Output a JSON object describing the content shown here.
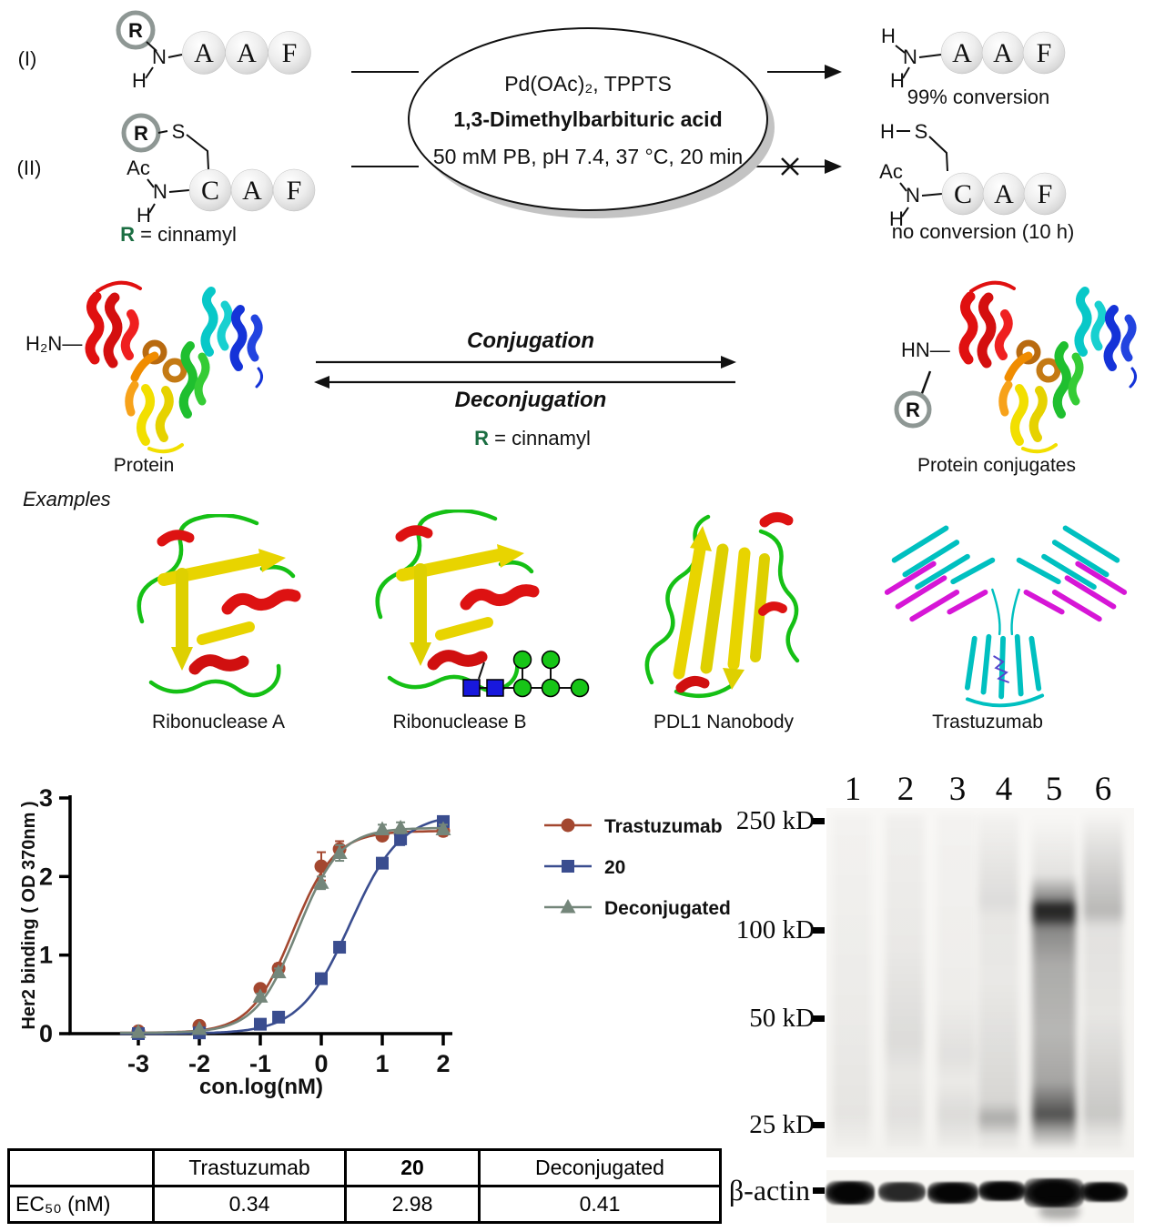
{
  "colors": {
    "green": "#1b6e42",
    "navy": "#1c4a75",
    "series_trastuzumab": "#a3472f",
    "series_20": "#3a4d8f",
    "series_deconjugated": "#74867a"
  },
  "scheme": {
    "label_i": "(I)",
    "label_ii": "(II)",
    "r": "R",
    "h": "H",
    "n": "N",
    "s": "S",
    "ac": "Ac",
    "beads_aaf": [
      "A",
      "A",
      "F"
    ],
    "beads_caf": [
      "C",
      "A",
      "F"
    ],
    "oval_line1": "Pd(OAc)₂, TPPTS",
    "oval_line2": "1,3-Dimethylbarbituric acid",
    "oval_line3": "50 mM PB, pH 7.4, 37 °C, 20 min",
    "conversion_i": "99% conversion",
    "conversion_ii": "no conversion (10 h)",
    "r_def_r": "R",
    "r_def_rest": " = cinnamyl"
  },
  "conjugation": {
    "forward_label": "Conjugation",
    "reverse_label": "Deconjugation",
    "r_def_r": "R",
    "r_def_rest": " = cinnamyl",
    "left_terminus": "H₂N—",
    "right_terminus": "HN—",
    "r": "R",
    "left_label": "Protein",
    "right_label": "Protein conjugates"
  },
  "examples": {
    "title": "Examples",
    "items": [
      "Ribonuclease A",
      "Ribonuclease B",
      "PDL1 Nanobody",
      "Trastuzumab"
    ]
  },
  "chart_data": {
    "type": "line",
    "title": "",
    "xlabel": "con.log(nM)",
    "ylabel": "Her2 binding ( OD 370nm )",
    "xticks": [
      -3,
      -2,
      -1,
      0,
      1,
      2
    ],
    "yticks": [
      0,
      1,
      2,
      3
    ],
    "xlim": [
      -4.1,
      2.15
    ],
    "ylim": [
      0,
      3
    ],
    "grid": false,
    "legend_position": "right",
    "x": [
      -3,
      -2,
      -1,
      -0.7,
      0,
      0.3,
      1,
      1.3,
      2
    ],
    "series": [
      {
        "name": "Trastuzumab",
        "marker": "circle",
        "color": "#a3472f",
        "values": [
          0.03,
          0.1,
          0.57,
          0.83,
          2.13,
          2.35,
          2.52,
          2.55,
          2.58
        ],
        "errors": [
          0,
          0.03,
          0.05,
          0.06,
          0.18,
          0.1,
          0.05,
          0.06,
          0.06
        ],
        "fit": {
          "top": 2.58,
          "bottom": 0.01,
          "logEC50": -0.468,
          "hill": 1.25
        }
      },
      {
        "name": "20",
        "marker": "square",
        "color": "#3a4d8f",
        "values": [
          0.0,
          0.01,
          0.12,
          0.21,
          0.7,
          1.1,
          2.17,
          2.48,
          2.7
        ],
        "errors": [
          0,
          0,
          0,
          0,
          0.04,
          0.05,
          0.05,
          0.08,
          0.05
        ],
        "fit": {
          "top": 2.8,
          "bottom": 0.0,
          "logEC50": 0.474,
          "hill": 1.05
        }
      },
      {
        "name": "Deconjugated",
        "marker": "triangle",
        "color": "#74867a",
        "values": [
          0.02,
          0.06,
          0.47,
          0.78,
          1.92,
          2.3,
          2.6,
          2.62,
          2.6
        ],
        "errors": [
          0,
          0.02,
          0.04,
          0.05,
          0.08,
          0.1,
          0.06,
          0.07,
          0.06
        ],
        "fit": {
          "top": 2.62,
          "bottom": 0.01,
          "logEC50": -0.387,
          "hill": 1.25
        }
      }
    ]
  },
  "table": {
    "col_headers": [
      "",
      "Trastuzumab",
      "20",
      "Deconjugated"
    ],
    "row_label": "EC₅₀ (nM)",
    "values": [
      "0.34",
      "2.98",
      "0.41"
    ]
  },
  "blot": {
    "lane_labels": [
      "1",
      "2",
      "3",
      "4",
      "5",
      "6"
    ],
    "marker_labels": [
      "250 kD",
      "100 kD",
      "50 kD",
      "25 kD"
    ],
    "actin_label": "β-actin"
  }
}
